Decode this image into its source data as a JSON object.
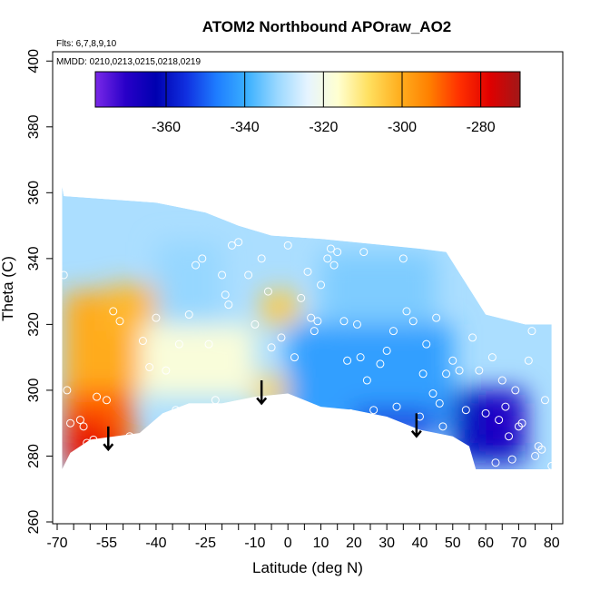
{
  "chart_data": {
    "type": "heatmap",
    "title": "ATOM2 Northbound APOraw_AO2",
    "notes": [
      "Flts: 6,7,8,9,10",
      "MMDD: 0210,0213,0215,0218,0219"
    ],
    "xlabel": "Latitude (deg N)",
    "ylabel": "Theta (C)",
    "xlim": [
      -70,
      82
    ],
    "ylim": [
      260,
      402
    ],
    "x_ticks": [
      -70,
      -55,
      -40,
      -25,
      -10,
      0,
      10,
      20,
      30,
      40,
      50,
      60,
      70,
      80
    ],
    "x_tick_labels": [
      "-70",
      "-55",
      "-40",
      "-25",
      "-10",
      "0",
      "10",
      "20",
      "30",
      "40",
      "50",
      "60",
      "70",
      "80"
    ],
    "y_ticks": [
      260,
      280,
      300,
      320,
      340,
      360,
      380,
      400
    ],
    "y_tick_labels": [
      "260",
      "280",
      "300",
      "320",
      "340",
      "360",
      "380",
      "400"
    ],
    "colorbar": {
      "range": [
        -378,
        -270
      ],
      "ticks": [
        -360,
        -340,
        -320,
        -300,
        -280
      ],
      "tick_labels": [
        "-360",
        "-340",
        "-320",
        "-300",
        "-280"
      ],
      "colors": [
        "#7a28e8",
        "#2800c8",
        "#0000b0",
        "#1030e0",
        "#1e7dff",
        "#3ab0ff",
        "#9ad8ff",
        "#e6f4ff",
        "#ffffd0",
        "#ffe060",
        "#ffb020",
        "#ff8000",
        "#ff3000",
        "#e00000",
        "#a01818"
      ]
    },
    "grid": false,
    "filled_region": {
      "bottom_boundary": [
        [
          -68.5,
          276
        ],
        [
          -66,
          281
        ],
        [
          -60,
          285
        ],
        [
          -45,
          287
        ],
        [
          -38,
          293
        ],
        [
          -30,
          296
        ],
        [
          -20,
          296
        ],
        [
          -10,
          298
        ],
        [
          0,
          299
        ],
        [
          5,
          297
        ],
        [
          10,
          295
        ],
        [
          20,
          294
        ],
        [
          30,
          292
        ],
        [
          40,
          288
        ],
        [
          50,
          286
        ],
        [
          55,
          283
        ],
        [
          57,
          276
        ],
        [
          80,
          276
        ]
      ],
      "top_boundary": [
        [
          -68.5,
          362
        ],
        [
          -68,
          359
        ],
        [
          -40,
          357
        ],
        [
          -25,
          354
        ],
        [
          -15,
          350
        ],
        [
          -5,
          347
        ],
        [
          10,
          346
        ],
        [
          20,
          345
        ],
        [
          30,
          344
        ],
        [
          40,
          343
        ],
        [
          48,
          342
        ],
        [
          60,
          323
        ],
        [
          72,
          320
        ],
        [
          80,
          320
        ]
      ]
    },
    "color_patches": [
      {
        "x": [
          -68,
          -47
        ],
        "y": [
          280,
          312
        ],
        "value": -290
      },
      {
        "x": [
          -68,
          -55
        ],
        "y": [
          276,
          292
        ],
        "value": -282
      },
      {
        "x": [
          -64,
          -50
        ],
        "y": [
          276,
          286
        ],
        "value": -278
      },
      {
        "x": [
          -68,
          -35
        ],
        "y": [
          300,
          330
        ],
        "value": -300
      },
      {
        "x": [
          -55,
          -38
        ],
        "y": [
          318,
          332
        ],
        "value": -302
      },
      {
        "x": [
          -10,
          2
        ],
        "y": [
          296,
          304
        ],
        "value": -306
      },
      {
        "x": [
          -8,
          3
        ],
        "y": [
          320,
          330
        ],
        "value": -305
      },
      {
        "x": [
          -45,
          -10
        ],
        "y": [
          298,
          320
        ],
        "value": -318
      },
      {
        "x": [
          -40,
          -20
        ],
        "y": [
          320,
          345
        ],
        "value": -332
      },
      {
        "x": [
          0,
          50
        ],
        "y": [
          288,
          320
        ],
        "value": -342
      },
      {
        "x": [
          20,
          45
        ],
        "y": [
          286,
          294
        ],
        "value": -355
      },
      {
        "x": [
          50,
          72
        ],
        "y": [
          278,
          300
        ],
        "value": -360
      },
      {
        "x": [
          60,
          70
        ],
        "y": [
          284,
          296
        ],
        "value": -370
      },
      {
        "x": [
          10,
          45
        ],
        "y": [
          320,
          342
        ],
        "value": -334
      }
    ],
    "arrows": [
      {
        "x": -54.5,
        "y_top": 289,
        "y_bottom": 282
      },
      {
        "x": -8,
        "y_top": 303,
        "y_bottom": 296
      },
      {
        "x": 39,
        "y_top": 293,
        "y_bottom": 286
      }
    ],
    "sample_points": [
      [
        -68,
        335
      ],
      [
        -67,
        300
      ],
      [
        -66,
        290
      ],
      [
        -63,
        291
      ],
      [
        -62,
        289
      ],
      [
        -61,
        284
      ],
      [
        -59,
        285
      ],
      [
        -57,
        280
      ],
      [
        -58,
        298
      ],
      [
        -55,
        297
      ],
      [
        -53,
        324
      ],
      [
        -51,
        321
      ],
      [
        -48,
        286
      ],
      [
        -44,
        315
      ],
      [
        -42,
        307
      ],
      [
        -40,
        322
      ],
      [
        -37,
        306
      ],
      [
        -34,
        294
      ],
      [
        -33,
        314
      ],
      [
        -30,
        323
      ],
      [
        -28,
        338
      ],
      [
        -26,
        340
      ],
      [
        -24,
        314
      ],
      [
        -22,
        297
      ],
      [
        -20,
        335
      ],
      [
        -19,
        329
      ],
      [
        -18,
        326
      ],
      [
        -17,
        344
      ],
      [
        -15,
        345
      ],
      [
        -12,
        335
      ],
      [
        -10,
        320
      ],
      [
        -8,
        340
      ],
      [
        -6,
        330
      ],
      [
        -5,
        313
      ],
      [
        -2,
        316
      ],
      [
        0,
        344
      ],
      [
        2,
        310
      ],
      [
        4,
        328
      ],
      [
        6,
        336
      ],
      [
        7,
        322
      ],
      [
        8,
        318
      ],
      [
        9,
        321
      ],
      [
        10,
        332
      ],
      [
        12,
        340
      ],
      [
        13,
        343
      ],
      [
        14,
        338
      ],
      [
        15,
        342
      ],
      [
        17,
        321
      ],
      [
        18,
        309
      ],
      [
        19,
        293
      ],
      [
        21,
        320
      ],
      [
        22,
        310
      ],
      [
        23,
        342
      ],
      [
        24,
        303
      ],
      [
        26,
        294
      ],
      [
        28,
        308
      ],
      [
        30,
        312
      ],
      [
        32,
        318
      ],
      [
        33,
        295
      ],
      [
        35,
        340
      ],
      [
        36,
        324
      ],
      [
        38,
        321
      ],
      [
        40,
        292
      ],
      [
        41,
        305
      ],
      [
        42,
        314
      ],
      [
        44,
        299
      ],
      [
        45,
        322
      ],
      [
        46,
        296
      ],
      [
        47,
        289
      ],
      [
        48,
        305
      ],
      [
        50,
        309
      ],
      [
        52,
        306
      ],
      [
        54,
        294
      ],
      [
        56,
        316
      ],
      [
        58,
        306
      ],
      [
        60,
        293
      ],
      [
        62,
        310
      ],
      [
        63,
        278
      ],
      [
        64,
        291
      ],
      [
        65,
        303
      ],
      [
        66,
        295
      ],
      [
        67,
        286
      ],
      [
        68,
        279
      ],
      [
        69,
        300
      ],
      [
        70,
        289
      ],
      [
        71,
        290
      ],
      [
        73,
        309
      ],
      [
        74,
        318
      ],
      [
        75,
        280
      ],
      [
        76,
        283
      ],
      [
        77,
        282
      ],
      [
        78,
        297
      ],
      [
        80,
        277
      ]
    ]
  }
}
